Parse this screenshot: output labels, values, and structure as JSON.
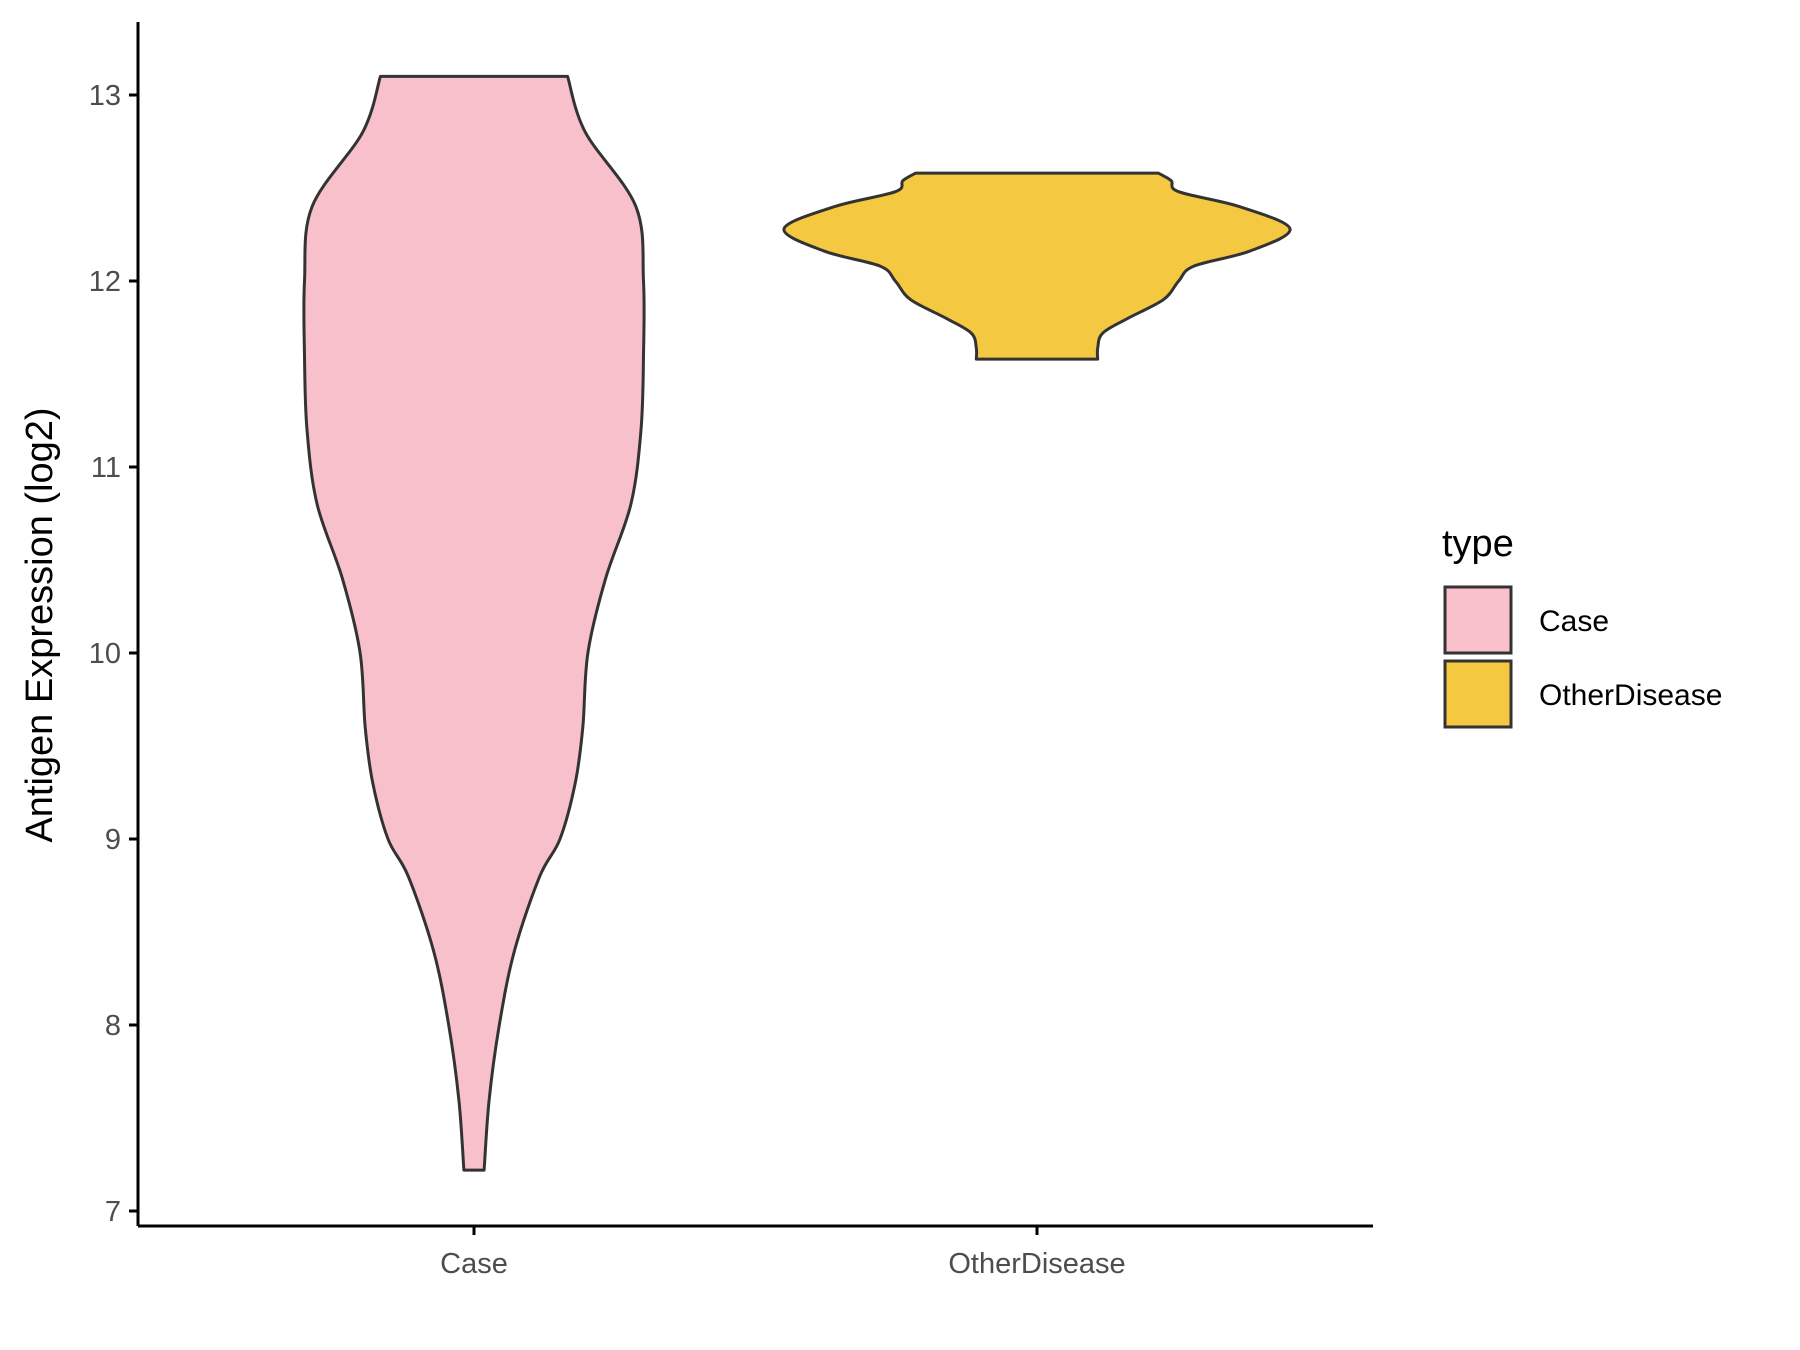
{
  "chart_data": {
    "type": "violin",
    "title": "",
    "xlabel": "",
    "ylabel": "Antigen Expression (log2)",
    "ylim": [
      6.95,
      13.4
    ],
    "yticks": [
      7,
      8,
      9,
      10,
      11,
      12,
      13
    ],
    "categories": [
      "Case",
      "OtherDisease"
    ],
    "grid": false,
    "legend": {
      "title": "type",
      "position": "right",
      "entries": [
        "Case",
        "OtherDisease"
      ]
    },
    "series": [
      {
        "name": "Case",
        "color": "#f8c0cb",
        "min": 7.22,
        "max": 13.1,
        "density_profile": [
          [
            7.22,
            0.04
          ],
          [
            7.6,
            0.06
          ],
          [
            8.0,
            0.1
          ],
          [
            8.4,
            0.16
          ],
          [
            8.8,
            0.26
          ],
          [
            9.0,
            0.34
          ],
          [
            9.3,
            0.4
          ],
          [
            9.6,
            0.43
          ],
          [
            10.0,
            0.45
          ],
          [
            10.4,
            0.52
          ],
          [
            10.8,
            0.62
          ],
          [
            11.2,
            0.66
          ],
          [
            11.6,
            0.67
          ],
          [
            12.0,
            0.67
          ],
          [
            12.4,
            0.64
          ],
          [
            12.8,
            0.44
          ],
          [
            13.1,
            0.37
          ]
        ]
      },
      {
        "name": "OtherDisease",
        "color": "#f5c842",
        "min": 11.58,
        "max": 12.58,
        "density_profile": [
          [
            11.58,
            0.24
          ],
          [
            11.64,
            0.24
          ],
          [
            11.72,
            0.26
          ],
          [
            11.8,
            0.36
          ],
          [
            11.9,
            0.5
          ],
          [
            12.0,
            0.56
          ],
          [
            12.08,
            0.62
          ],
          [
            12.16,
            0.84
          ],
          [
            12.28,
            1.0
          ],
          [
            12.4,
            0.8
          ],
          [
            12.48,
            0.56
          ],
          [
            12.54,
            0.53
          ],
          [
            12.58,
            0.48
          ]
        ]
      }
    ],
    "colors": {
      "outline": "#333333",
      "axis": "#000000",
      "tick_label": "#4d4d4d"
    }
  }
}
